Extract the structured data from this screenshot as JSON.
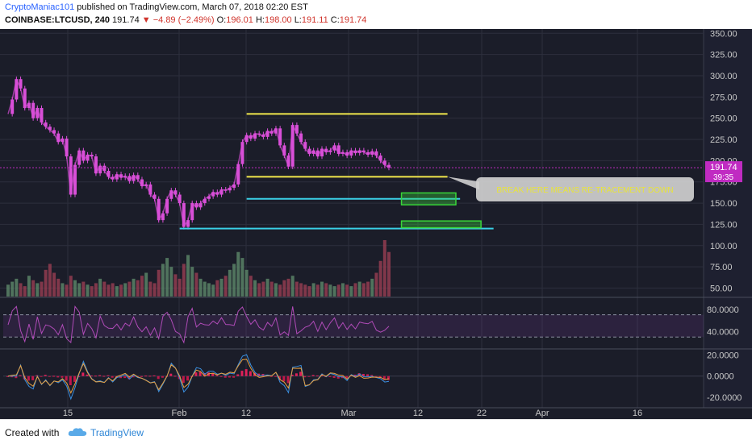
{
  "header": {
    "author": "CryptoManiac101",
    "published": " published on TradingView.com, March 07, 2018 02:20 EST",
    "symbol": "COINBASE:LTCUSD, 240",
    "last": "191.74",
    "change": "−4.89 (−2.49%)",
    "o_label": "O:",
    "o_value": "196.01",
    "h_label": "H:",
    "h_value": "198.00",
    "l_label": "L:",
    "l_value": "191.11",
    "c_label": "C:",
    "c_value": "191.74"
  },
  "footer": {
    "created_with": "Created with",
    "brand": "TradingView"
  },
  "colors": {
    "background": "#1b1d29",
    "candle": "#d94fd8",
    "support_line": "#f2e84b",
    "target_line": "#3ad0e6",
    "target_box": "#39d639",
    "callout": "#cfcfcf",
    "callout_text": "#e8e43a"
  },
  "chart_data": {
    "type": "candlestick",
    "price_axis": {
      "ticks": [
        "350.00",
        "325.00",
        "300.00",
        "275.00",
        "250.00",
        "225.00",
        "200.00",
        "175.00",
        "150.00",
        "125.00",
        "100.00",
        "75.00",
        "50.00"
      ],
      "ylim": [
        40,
        355
      ]
    },
    "time_axis": {
      "ticks": [
        "15",
        "Feb",
        "12",
        "Mar",
        "12",
        "22",
        "Apr",
        "16"
      ]
    },
    "last_price_label": "191.74",
    "countdown_label": "39:35",
    "price_path": [
      [
        0,
        255
      ],
      [
        1,
        272
      ],
      [
        2,
        296
      ],
      [
        3,
        285
      ],
      [
        4,
        262
      ],
      [
        5,
        268
      ],
      [
        6,
        250
      ],
      [
        7,
        262
      ],
      [
        8,
        245
      ],
      [
        9,
        240
      ],
      [
        10,
        236
      ],
      [
        11,
        232
      ],
      [
        12,
        222
      ],
      [
        13,
        226
      ],
      [
        14,
        205
      ],
      [
        15,
        160
      ],
      [
        16,
        195
      ],
      [
        17,
        212
      ],
      [
        18,
        200
      ],
      [
        19,
        207
      ],
      [
        20,
        205
      ],
      [
        21,
        185
      ],
      [
        22,
        194
      ],
      [
        23,
        188
      ],
      [
        24,
        181
      ],
      [
        25,
        178
      ],
      [
        26,
        184
      ],
      [
        27,
        180
      ],
      [
        28,
        182
      ],
      [
        29,
        176
      ],
      [
        30,
        183
      ],
      [
        31,
        178
      ],
      [
        32,
        170
      ],
      [
        33,
        172
      ],
      [
        34,
        160
      ],
      [
        35,
        155
      ],
      [
        36,
        130
      ],
      [
        37,
        138
      ],
      [
        38,
        155
      ],
      [
        39,
        165
      ],
      [
        40,
        160
      ],
      [
        41,
        150
      ],
      [
        42,
        122
      ],
      [
        43,
        130
      ],
      [
        44,
        150
      ],
      [
        45,
        145
      ],
      [
        46,
        150
      ],
      [
        47,
        155
      ],
      [
        48,
        158
      ],
      [
        49,
        163
      ],
      [
        50,
        160
      ],
      [
        51,
        166
      ],
      [
        52,
        165
      ],
      [
        53,
        168
      ],
      [
        54,
        172
      ],
      [
        55,
        196
      ],
      [
        56,
        222
      ],
      [
        57,
        230
      ],
      [
        58,
        226
      ],
      [
        59,
        232
      ],
      [
        60,
        231
      ],
      [
        61,
        228
      ],
      [
        62,
        235
      ],
      [
        63,
        232
      ],
      [
        64,
        238
      ],
      [
        65,
        218
      ],
      [
        66,
        206
      ],
      [
        67,
        193
      ],
      [
        68,
        242
      ],
      [
        69,
        232
      ],
      [
        70,
        222
      ],
      [
        71,
        214
      ],
      [
        72,
        208
      ],
      [
        73,
        212
      ],
      [
        74,
        205
      ],
      [
        75,
        214
      ],
      [
        76,
        210
      ],
      [
        77,
        212
      ],
      [
        78,
        218
      ],
      [
        79,
        208
      ],
      [
        80,
        210
      ],
      [
        81,
        206
      ],
      [
        82,
        212
      ],
      [
        83,
        209
      ],
      [
        84,
        212
      ],
      [
        85,
        210
      ],
      [
        86,
        207
      ],
      [
        87,
        211
      ],
      [
        88,
        206
      ],
      [
        89,
        200
      ],
      [
        90,
        195
      ],
      [
        91,
        191.74
      ]
    ],
    "volume": [
      8,
      10,
      12,
      9,
      7,
      14,
      11,
      9,
      10,
      18,
      22,
      16,
      12,
      9,
      8,
      14,
      11,
      9,
      10,
      8,
      7,
      9,
      12,
      10,
      8,
      9,
      7,
      8,
      9,
      10,
      12,
      11,
      14,
      16,
      10,
      9,
      18,
      22,
      26,
      20,
      15,
      12,
      22,
      28,
      20,
      16,
      12,
      10,
      9,
      8,
      11,
      12,
      14,
      18,
      22,
      30,
      26,
      18,
      14,
      11,
      9,
      10,
      12,
      10,
      9,
      8,
      11,
      12,
      14,
      10,
      9,
      8,
      7,
      9,
      8,
      10,
      9,
      8,
      7,
      8,
      9,
      8,
      7,
      9,
      10,
      9,
      10,
      12,
      16,
      24,
      38,
      30
    ],
    "levels": [
      {
        "price": 255,
        "x_from": 57,
        "x_to": 105,
        "color": "#f2e84b"
      },
      {
        "price": 181,
        "x_from": 57,
        "x_to": 105,
        "color": "#f2e84b"
      },
      {
        "price": 155,
        "x_from": 57,
        "x_to": 108,
        "color": "#3ad0e6"
      },
      {
        "price": 120,
        "x_from": 41,
        "x_to": 116,
        "color": "#3ad0e6"
      }
    ],
    "target_zones": [
      {
        "x_from": 94,
        "x_to": 107,
        "price_low": 148,
        "price_high": 162
      },
      {
        "x_from": 94,
        "x_to": 113,
        "price_low": 121,
        "price_high": 129
      }
    ],
    "annotation": "BREAK HERE MEANS RE-TRACEMENT DOWN",
    "rsi": {
      "ticks": [
        "80.0000",
        "40.0000"
      ],
      "ylim": [
        10,
        100
      ],
      "levels": [
        70,
        30
      ]
    },
    "macd": {
      "ticks": [
        "20.0000",
        "0.0000",
        "-20.0000"
      ],
      "ylim": [
        -30,
        25
      ]
    }
  }
}
